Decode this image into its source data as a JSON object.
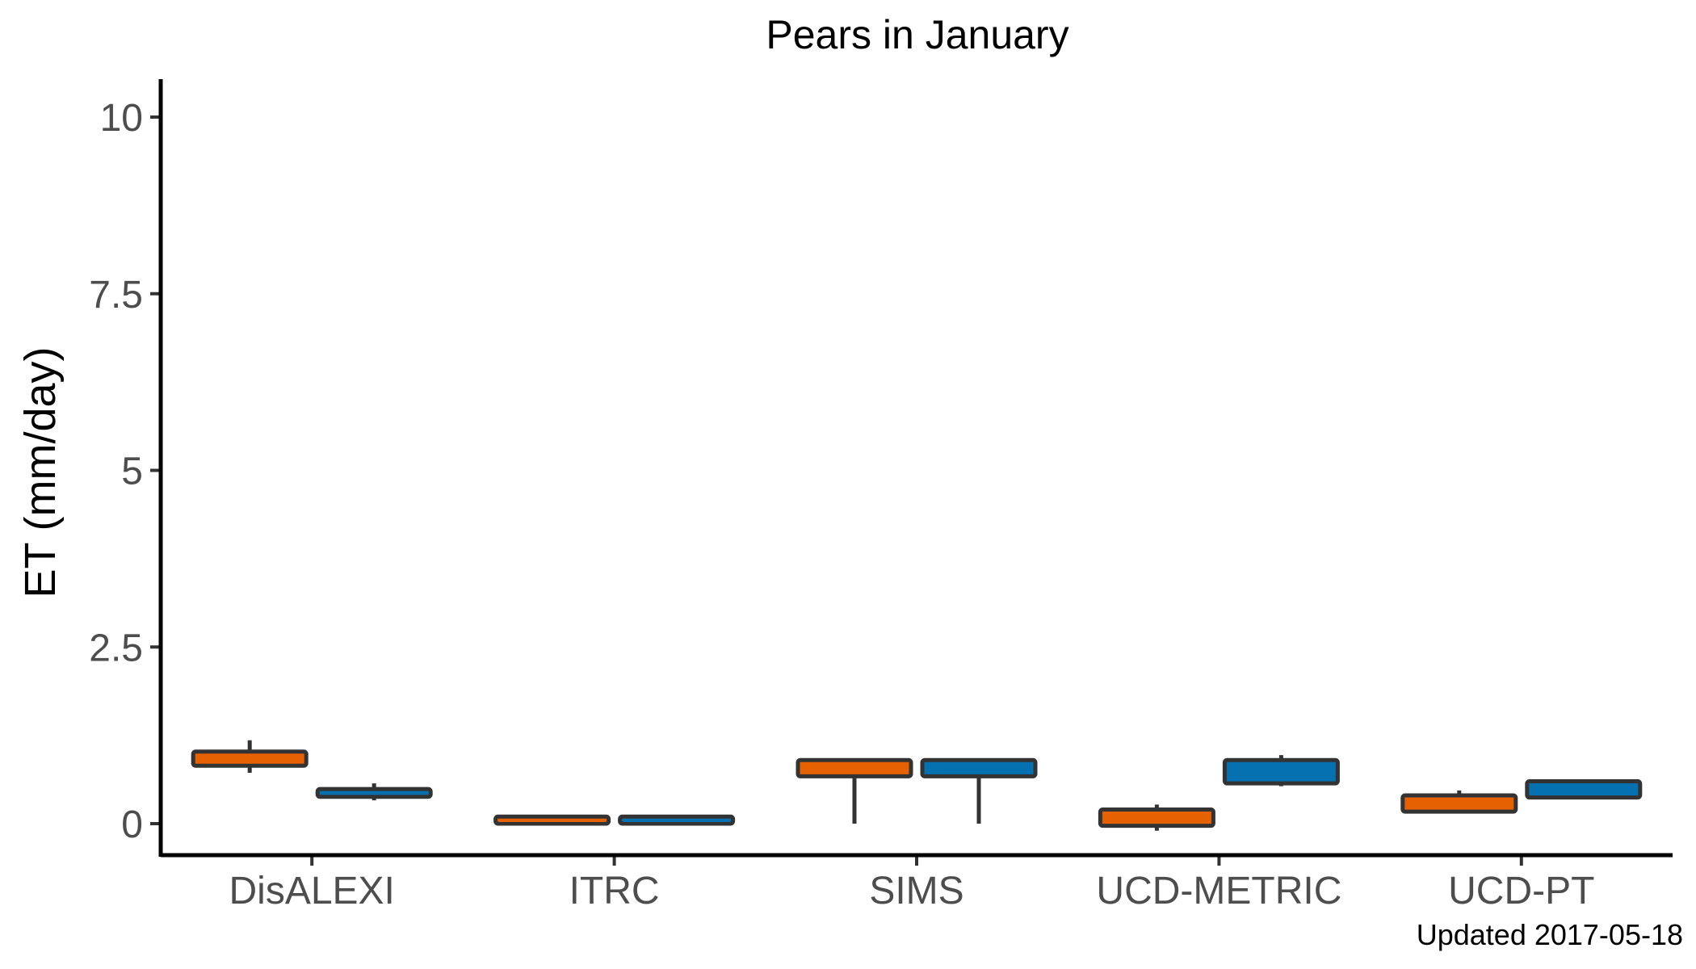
{
  "chart_data": {
    "type": "box",
    "title": "Pears in January",
    "xlabel": "",
    "ylabel": "ET (mm/day)",
    "ylim": [
      -0.5,
      10.5
    ],
    "yticks": [
      0,
      2.5,
      5,
      7.5,
      10
    ],
    "ytick_labels": [
      "0",
      "2.5",
      "5",
      "7.5",
      "10"
    ],
    "grid": false,
    "legend": "none",
    "categories": [
      "DisALEXI",
      "ITRC",
      "SIMS",
      "UCD-METRIC",
      "UCD-PT"
    ],
    "series": [
      {
        "name": "series-1",
        "color": "#E66101",
        "boxes": [
          {
            "min": 0.72,
            "q1": 0.82,
            "median": 0.92,
            "q3": 1.02,
            "max": 1.18
          },
          {
            "min": 0.0,
            "q1": 0.0,
            "median": 0.04,
            "q3": 0.1,
            "max": 0.1
          },
          {
            "min": 0.0,
            "q1": 0.67,
            "median": 0.78,
            "q3": 0.9,
            "max": 0.9
          },
          {
            "min": -0.1,
            "q1": -0.03,
            "median": 0.08,
            "q3": 0.2,
            "max": 0.27
          },
          {
            "min": 0.17,
            "q1": 0.17,
            "median": 0.3,
            "q3": 0.4,
            "max": 0.47
          }
        ]
      },
      {
        "name": "series-2",
        "color": "#0571B0",
        "boxes": [
          {
            "min": 0.33,
            "q1": 0.38,
            "median": 0.44,
            "q3": 0.49,
            "max": 0.57
          },
          {
            "min": 0.0,
            "q1": 0.0,
            "median": 0.04,
            "q3": 0.1,
            "max": 0.1
          },
          {
            "min": 0.0,
            "q1": 0.67,
            "median": 0.78,
            "q3": 0.9,
            "max": 0.9
          },
          {
            "min": 0.53,
            "q1": 0.57,
            "median": 0.75,
            "q3": 0.9,
            "max": 0.97
          },
          {
            "min": 0.37,
            "q1": 0.37,
            "median": 0.52,
            "q3": 0.6,
            "max": 0.6
          }
        ]
      }
    ],
    "footer": "Updated  2017-05-18"
  }
}
